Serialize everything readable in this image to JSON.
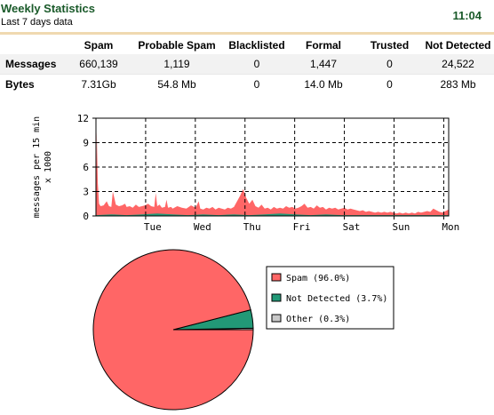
{
  "header": {
    "title": "Weekly Statistics",
    "subtitle": "Last 7 days data",
    "time": "11:04"
  },
  "table": {
    "columns": [
      "Spam",
      "Probable Spam",
      "Blacklisted",
      "Formal",
      "Trusted",
      "Not Detected"
    ],
    "rows": [
      {
        "label": "Messages",
        "values": [
          "660,139",
          "1,119",
          "0",
          "1,447",
          "0",
          "24,522"
        ]
      },
      {
        "label": "Bytes",
        "values": [
          "7.31Gb",
          "54.8 Mb",
          "0",
          "14.0 Mb",
          "0",
          "283 Mb"
        ]
      }
    ]
  },
  "colors": {
    "spam": "#ff6666",
    "not_detected": "#229977",
    "other": "#c8c8c8",
    "header_line": "#f0d9b0",
    "title": "#1a5a2a"
  },
  "chart_data": [
    {
      "type": "area",
      "ylabel": "messages per 15 min",
      "ylabel2": "x 1000",
      "ylim": [
        0,
        12
      ],
      "yticks": [
        "0",
        "3",
        "6",
        "9",
        "12"
      ],
      "xticks": [
        "Tue",
        "Wed",
        "Thu",
        "Fri",
        "Sat",
        "Sun",
        "Mon"
      ],
      "grid": true,
      "series": [
        {
          "color_key": "spam",
          "x": [
            0.0,
            0.05,
            0.12,
            0.2,
            0.3,
            0.5,
            0.7,
            0.85,
            1.0,
            1.1,
            1.3,
            1.5,
            1.7,
            1.9,
            2.0,
            2.2,
            2.4,
            2.6,
            2.8,
            3.0,
            3.2,
            3.4,
            3.6,
            3.8,
            3.9,
            4.0,
            4.15,
            4.3,
            4.5,
            4.6,
            4.7,
            4.9,
            5.0,
            5.3,
            5.6,
            5.9,
            6.2,
            6.5,
            6.7,
            6.8,
            7.0,
            7.2,
            7.4,
            7.6,
            7.8,
            8.0,
            8.2,
            8.4,
            8.6,
            8.8,
            9.0,
            9.2,
            9.4,
            9.6,
            9.8,
            10.0,
            10.2,
            10.4,
            10.6,
            10.8,
            11.0,
            11.2,
            11.4,
            11.6,
            11.8,
            12.0,
            12.2,
            12.4,
            12.6,
            12.8,
            13.0,
            13.2,
            13.4,
            13.6,
            13.8,
            14.0,
            14.2,
            14.4,
            14.6,
            14.8,
            15.0,
            15.2,
            15.4,
            15.6,
            15.8,
            16.0,
            16.2,
            16.4,
            16.6,
            16.8,
            17.0,
            17.2,
            17.4,
            17.6,
            17.8,
            18.0,
            18.2,
            18.4,
            18.6,
            18.8,
            19.0,
            19.2,
            19.4,
            19.6,
            19.8,
            20.0,
            20.2,
            20.4,
            20.6,
            20.8,
            21.0,
            21.2,
            21.4,
            21.6,
            21.8,
            22.0,
            22.2,
            22.4,
            22.6,
            22.8,
            23.0
          ],
          "values": [
            0.5,
            10.3,
            4.0,
            1.5,
            1.2,
            1.3,
            1.8,
            1.2,
            1.1,
            3.0,
            1.4,
            1.2,
            1.3,
            1.5,
            1.1,
            1.2,
            1.0,
            1.4,
            1.1,
            1.2,
            1.3,
            1.5,
            1.2,
            1.1,
            2.8,
            1.2,
            1.4,
            1.0,
            1.1,
            2.0,
            1.0,
            1.1,
            0.9,
            1.2,
            1.0,
            0.9,
            1.3,
            1.0,
            1.8,
            0.9,
            0.8,
            1.0,
            0.9,
            1.1,
            0.8,
            1.0,
            0.9,
            0.8,
            1.0,
            0.9,
            1.1,
            1.8,
            2.5,
            3.3,
            2.2,
            1.5,
            2.0,
            1.2,
            1.0,
            1.4,
            0.9,
            1.0,
            0.8,
            1.1,
            0.9,
            1.0,
            0.9,
            1.2,
            1.0,
            1.1,
            0.9,
            1.0,
            1.2,
            1.5,
            1.0,
            1.1,
            0.9,
            1.3,
            1.0,
            1.1,
            0.8,
            1.0,
            0.9,
            1.0,
            0.8,
            0.9,
            1.0,
            0.8,
            0.9,
            0.8,
            0.7,
            0.6,
            0.7,
            0.5,
            0.6,
            0.5,
            0.4,
            0.5,
            0.4,
            0.5,
            0.4,
            0.5,
            0.4,
            0.3,
            0.4,
            0.3,
            0.4,
            0.3,
            0.4,
            0.3,
            0.5,
            0.4,
            0.5,
            0.6,
            0.5,
            0.9,
            0.7,
            0.5,
            0.4,
            0.6,
            0.8
          ]
        },
        {
          "color_key": "not_detected",
          "x": [
            0.0,
            1.0,
            2.0,
            3.0,
            4.0,
            5.0,
            6.0,
            7.0,
            8.0,
            9.0,
            10.0,
            11.0,
            12.0,
            13.0,
            14.0,
            15.0,
            16.0,
            17.0,
            18.0,
            19.0,
            20.0,
            21.0,
            22.0,
            23.0
          ],
          "values": [
            0.1,
            0.2,
            0.1,
            0.2,
            0.3,
            0.2,
            0.1,
            0.2,
            0.1,
            0.2,
            0.1,
            0.2,
            0.3,
            0.2,
            0.1,
            0.2,
            0.1,
            0.1,
            0.1,
            0.1,
            0.1,
            0.1,
            0.1,
            0.1
          ]
        }
      ]
    },
    {
      "type": "pie",
      "slices": [
        {
          "label": "Spam (96.0%)",
          "value": 96.0,
          "color_key": "spam"
        },
        {
          "label": "Not Detected (3.7%)",
          "value": 3.7,
          "color_key": "not_detected"
        },
        {
          "label": "Other (0.3%)",
          "value": 0.3,
          "color_key": "other"
        }
      ],
      "legend": "right"
    }
  ]
}
